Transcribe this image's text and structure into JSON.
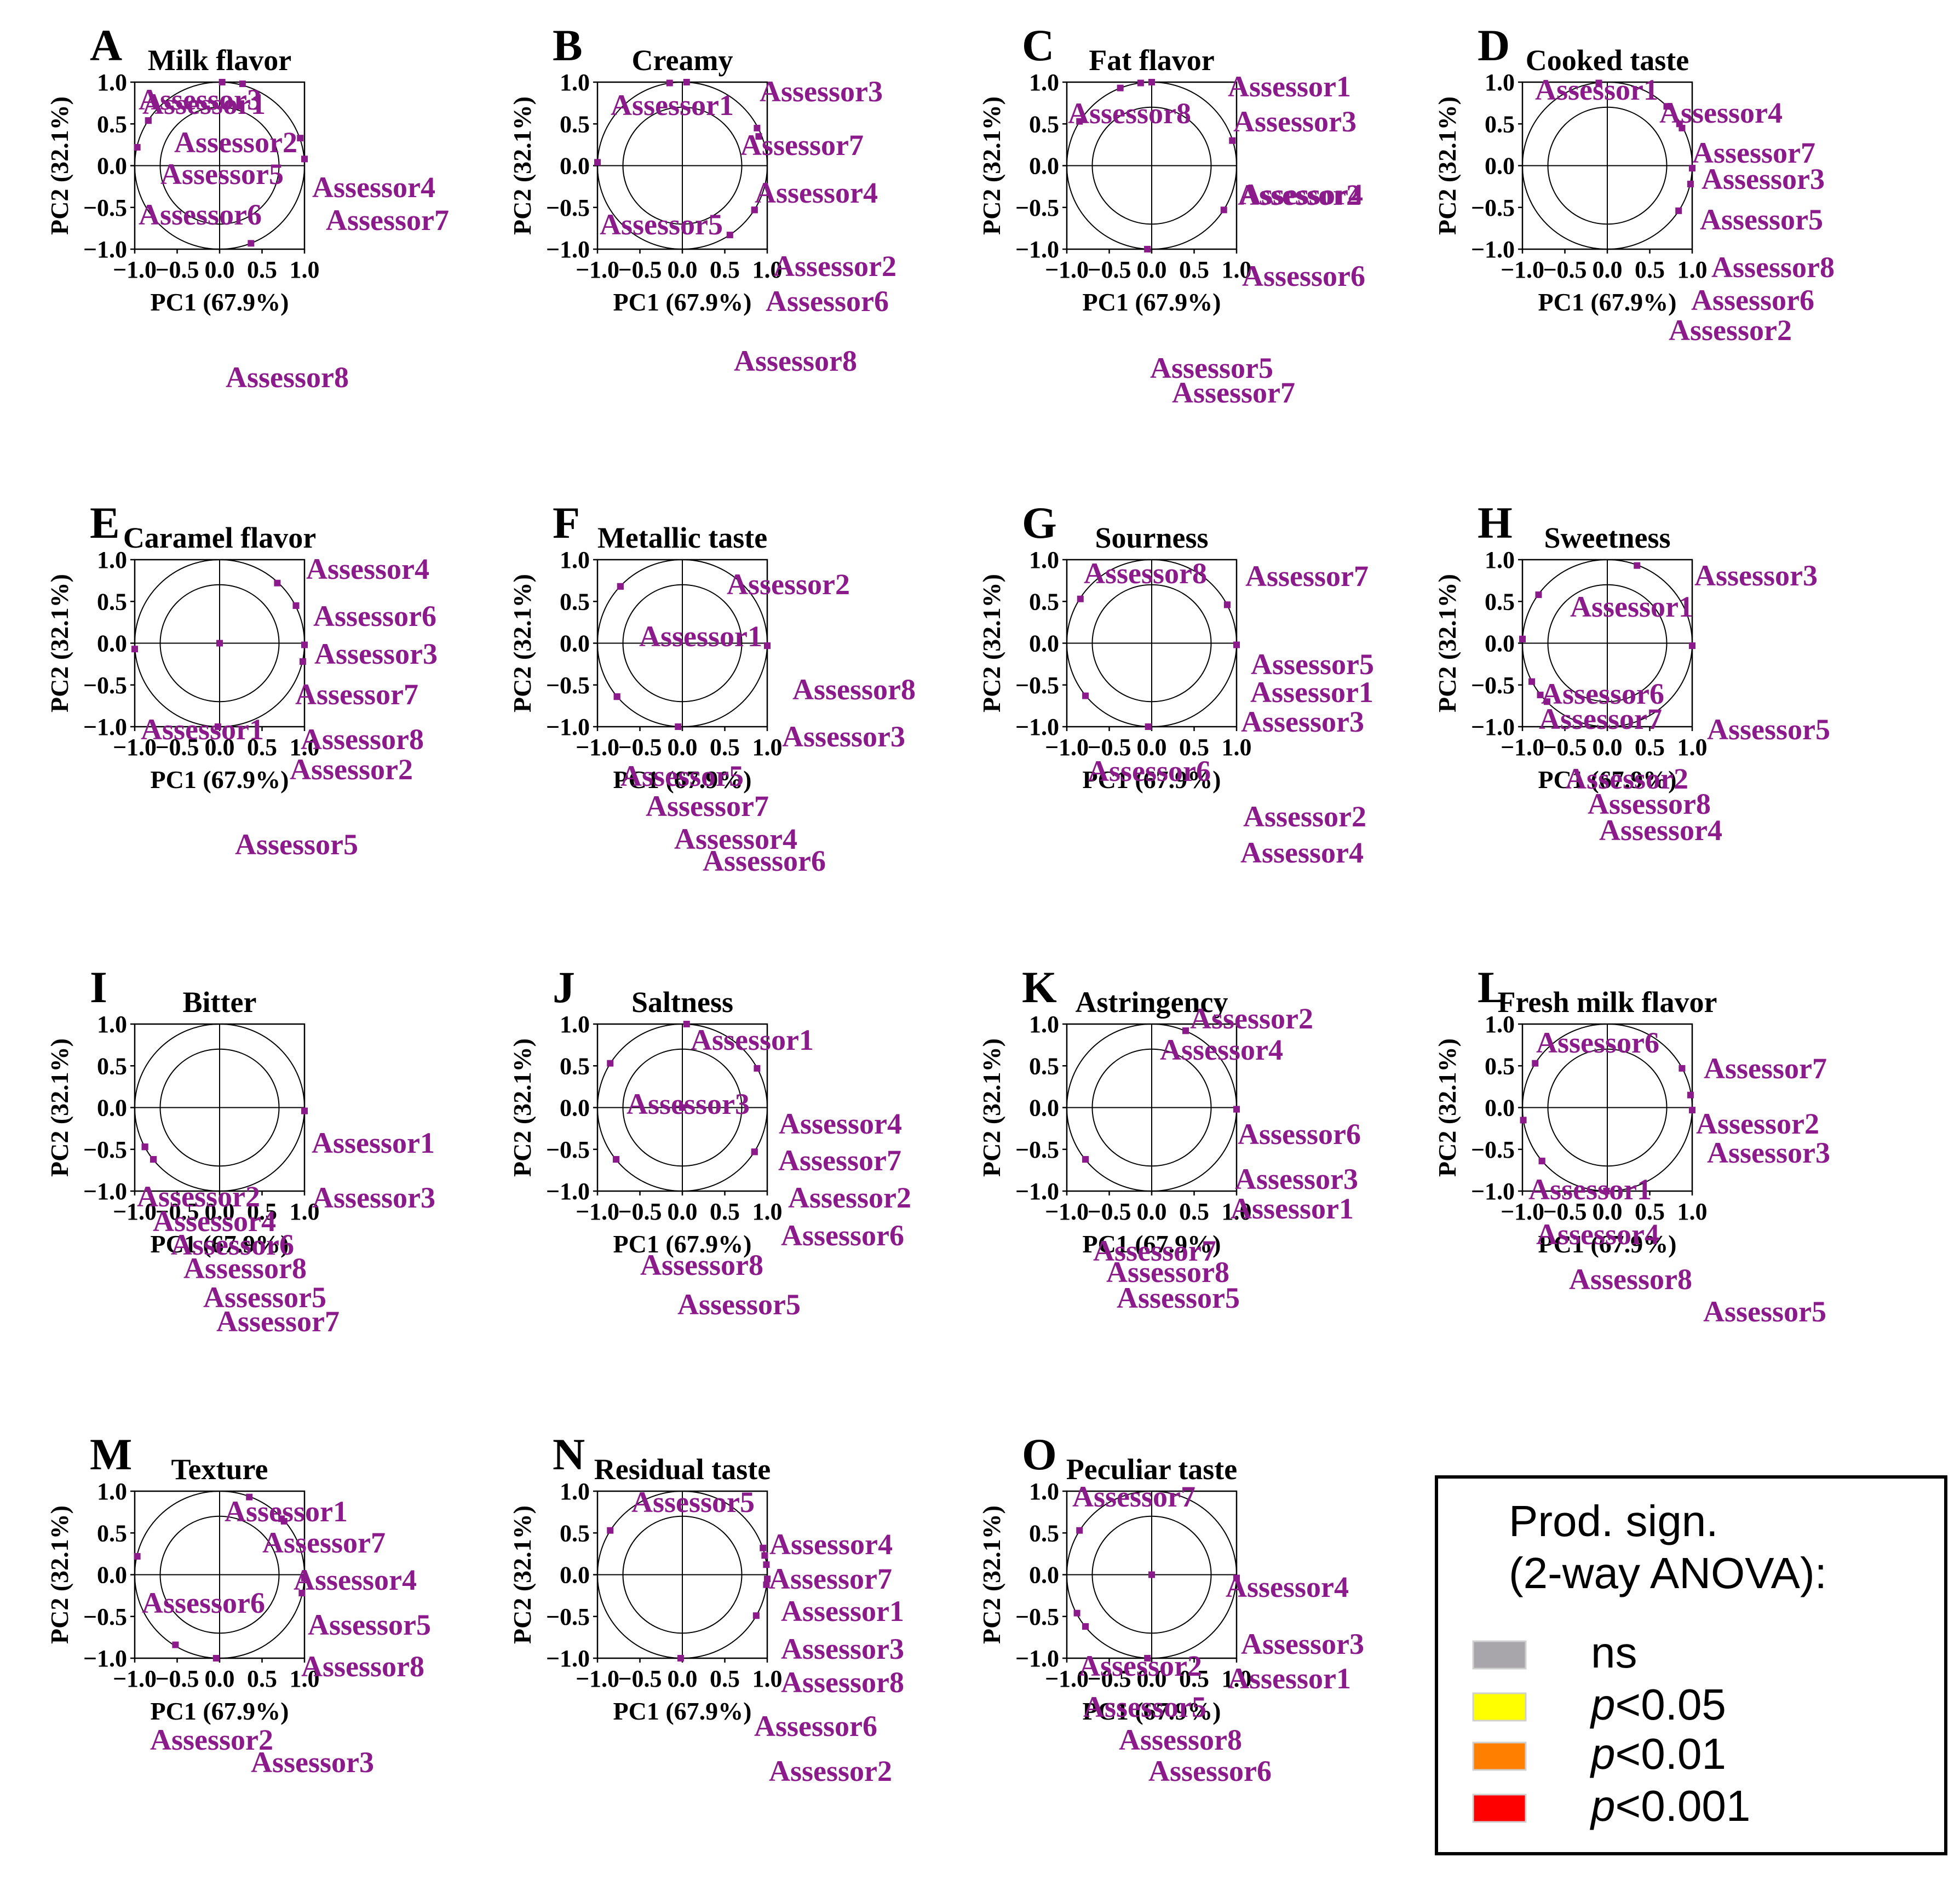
{
  "colors": {
    "point": "#8b1a8b",
    "axis": "#000000"
  },
  "legend": {
    "title_line1": "Prod. sign.",
    "title_line2": "(2-way ANOVA):",
    "items": [
      {
        "label": "ns",
        "color": "#a8a6ab"
      },
      {
        "label": "p<0.05",
        "color": "#ffff00"
      },
      {
        "label": "p<0.01",
        "color": "#ff8000"
      },
      {
        "label": "p<0.001",
        "color": "#ff0000"
      }
    ]
  },
  "chart_data": [
    {
      "type": "scatter",
      "letter": "A",
      "title": "Milk flavor",
      "xlabel": "PC1 (67.9%)",
      "ylabel": "PC2 (32.1%)",
      "xlim": [
        -1,
        1
      ],
      "ylim": [
        -1,
        1
      ],
      "xticks": [
        "−1.0",
        "−0.5",
        "0.0",
        "0.5",
        "1.0"
      ],
      "yticks": [
        "−1.0",
        "−0.5",
        "0.0",
        "0.5",
        "1.0"
      ],
      "circles": [
        1.0,
        0.7
      ],
      "points": [
        {
          "name": "Assessor1",
          "x": 0.27,
          "y": 0.98
        },
        {
          "name": "Assessor2",
          "x": -0.84,
          "y": 0.54
        },
        {
          "name": "Assessor3",
          "x": 0.03,
          "y": 1.0
        },
        {
          "name": "Assessor4",
          "x": 0.95,
          "y": 0.33
        },
        {
          "name": "Assessor5",
          "x": -0.84,
          "y": 0.54
        },
        {
          "name": "Assessor6",
          "x": -0.97,
          "y": 0.22
        },
        {
          "name": "Assessor7",
          "x": 1.0,
          "y": 0.08
        },
        {
          "name": "Assessor8",
          "x": 0.37,
          "y": -0.93
        }
      ]
    },
    {
      "type": "scatter",
      "letter": "B",
      "title": "Creamy",
      "xlabel": "PC1 (67.9%)",
      "ylabel": "PC2 (32.1%)",
      "xlim": [
        -1,
        1
      ],
      "ylim": [
        -1,
        1
      ],
      "xticks": [
        "−1.0",
        "−0.5",
        "0.0",
        "0.5",
        "1.0"
      ],
      "yticks": [
        "−1.0",
        "−0.5",
        "0.0",
        "0.5",
        "1.0"
      ],
      "circles": [
        1.0,
        0.7
      ],
      "points": [
        {
          "name": "Assessor1",
          "x": -0.15,
          "y": 0.99
        },
        {
          "name": "Assessor2",
          "x": 0.85,
          "y": -0.53
        },
        {
          "name": "Assessor3",
          "x": 0.05,
          "y": 1.0
        },
        {
          "name": "Assessor4",
          "x": 0.9,
          "y": 0.35
        },
        {
          "name": "Assessor5",
          "x": -1.0,
          "y": 0.04
        },
        {
          "name": "Assessor6",
          "x": 0.85,
          "y": -0.53
        },
        {
          "name": "Assessor7",
          "x": 0.88,
          "y": 0.45
        },
        {
          "name": "Assessor8",
          "x": 0.56,
          "y": -0.83
        }
      ]
    },
    {
      "type": "scatter",
      "letter": "C",
      "title": "Fat flavor",
      "xlabel": "PC1 (67.9%)",
      "ylabel": "PC2 (32.1%)",
      "xlim": [
        -1,
        1
      ],
      "ylim": [
        -1,
        1
      ],
      "xticks": [
        "−1.0",
        "−0.5",
        "0.0",
        "0.5",
        "1.0"
      ],
      "yticks": [
        "−1.0",
        "−0.5",
        "0.0",
        "0.5",
        "1.0"
      ],
      "circles": [
        1.0,
        0.7
      ],
      "points": [
        {
          "name": "Assessor1",
          "x": 0.0,
          "y": 1.0
        },
        {
          "name": "Assessor2",
          "x": -0.85,
          "y": 0.53
        },
        {
          "name": "Assessor3",
          "x": -0.13,
          "y": 0.99
        },
        {
          "name": "Assessor4",
          "x": 0.95,
          "y": 0.3
        },
        {
          "name": "Assessor5",
          "x": -0.05,
          "y": -1.0
        },
        {
          "name": "Assessor6",
          "x": 0.85,
          "y": -0.53
        },
        {
          "name": "Assessor7",
          "x": -0.05,
          "y": -1.0
        },
        {
          "name": "Assessor8",
          "x": -0.37,
          "y": 0.93
        }
      ]
    },
    {
      "type": "scatter",
      "letter": "D",
      "title": "Cooked taste",
      "xlabel": "PC1 (67.9%)",
      "ylabel": "PC2 (32.1%)",
      "xlim": [
        -1,
        1
      ],
      "ylim": [
        -1,
        1
      ],
      "xticks": [
        "−1.0",
        "−0.5",
        "0.0",
        "0.5",
        "1.0"
      ],
      "yticks": [
        "−1.0",
        "−0.5",
        "0.0",
        "0.5",
        "1.0"
      ],
      "circles": [
        1.0,
        0.7
      ],
      "points": [
        {
          "name": "Assessor1",
          "x": -0.1,
          "y": 0.99
        },
        {
          "name": "Assessor2",
          "x": 0.84,
          "y": -0.54
        },
        {
          "name": "Assessor3",
          "x": 0.88,
          "y": 0.45
        },
        {
          "name": "Assessor4",
          "x": 0.7,
          "y": 0.71
        },
        {
          "name": "Assessor5",
          "x": 1.0,
          "y": -0.03
        },
        {
          "name": "Assessor6",
          "x": 0.98,
          "y": -0.22
        },
        {
          "name": "Assessor7",
          "x": 0.85,
          "y": 0.5
        },
        {
          "name": "Assessor8",
          "x": 1.0,
          "y": -0.03
        }
      ]
    },
    {
      "type": "scatter",
      "letter": "E",
      "title": "Caramel flavor",
      "xlabel": "PC1 (67.9%)",
      "ylabel": "PC2 (32.1%)",
      "xlim": [
        -1,
        1
      ],
      "ylim": [
        -1,
        1
      ],
      "xticks": [
        "−1.0",
        "−0.5",
        "0.0",
        "0.5",
        "1.0"
      ],
      "yticks": [
        "−1.0",
        "−0.5",
        "0.0",
        "0.5",
        "1.0"
      ],
      "circles": [
        1.0,
        0.7
      ],
      "points": [
        {
          "name": "Assessor1",
          "x": -1.0,
          "y": -0.07
        },
        {
          "name": "Assessor2",
          "x": 0.98,
          "y": -0.22
        },
        {
          "name": "Assessor3",
          "x": 0.9,
          "y": 0.45
        },
        {
          "name": "Assessor4",
          "x": 0.68,
          "y": 0.72
        },
        {
          "name": "Assessor5",
          "x": -0.02,
          "y": -1.0
        },
        {
          "name": "Assessor6",
          "x": 0.9,
          "y": 0.45
        },
        {
          "name": "Assessor7",
          "x": 0.0,
          "y": 0.0
        },
        {
          "name": "Assessor8",
          "x": 1.0,
          "y": -0.02
        }
      ]
    },
    {
      "type": "scatter",
      "letter": "F",
      "title": "Metallic taste",
      "xlabel": "PC1 (67.9%)",
      "ylabel": "PC2 (32.1%)",
      "xlim": [
        -1,
        1
      ],
      "ylim": [
        -1,
        1
      ],
      "xticks": [
        "−1.0",
        "−0.5",
        "0.0",
        "0.5",
        "1.0"
      ],
      "yticks": [
        "−1.0",
        "−0.5",
        "0.0",
        "0.5",
        "1.0"
      ],
      "circles": [
        1.0,
        0.7
      ],
      "points": [
        {
          "name": "Assessor1",
          "x": -0.73,
          "y": 0.68
        },
        {
          "name": "Assessor2",
          "x": -0.73,
          "y": 0.68
        },
        {
          "name": "Assessor3",
          "x": 1.0,
          "y": -0.03
        },
        {
          "name": "Assessor4",
          "x": -0.77,
          "y": -0.64
        },
        {
          "name": "Assessor5",
          "x": -0.77,
          "y": -0.64
        },
        {
          "name": "Assessor6",
          "x": -0.05,
          "y": -1.0
        },
        {
          "name": "Assessor7",
          "x": -0.77,
          "y": -0.64
        },
        {
          "name": "Assessor8",
          "x": 1.0,
          "y": -0.03
        }
      ]
    },
    {
      "type": "scatter",
      "letter": "G",
      "title": "Sourness",
      "xlabel": "PC1 (67.9%)",
      "ylabel": "PC2 (32.1%)",
      "xlim": [
        -1,
        1
      ],
      "ylim": [
        -1,
        1
      ],
      "xticks": [
        "−1.0",
        "−0.5",
        "0.0",
        "0.5",
        "1.0"
      ],
      "yticks": [
        "−1.0",
        "−0.5",
        "0.0",
        "0.5",
        "1.0"
      ],
      "circles": [
        1.0,
        0.7
      ],
      "points": [
        {
          "name": "Assessor1",
          "x": 1.0,
          "y": -0.02
        },
        {
          "name": "Assessor2",
          "x": -0.04,
          "y": -1.0
        },
        {
          "name": "Assessor3",
          "x": 1.0,
          "y": -0.02
        },
        {
          "name": "Assessor4",
          "x": -0.04,
          "y": -1.0
        },
        {
          "name": "Assessor5",
          "x": 0.89,
          "y": 0.46
        },
        {
          "name": "Assessor6",
          "x": -0.78,
          "y": -0.63
        },
        {
          "name": "Assessor7",
          "x": 0.89,
          "y": 0.46
        },
        {
          "name": "Assessor8",
          "x": -0.84,
          "y": 0.53
        }
      ]
    },
    {
      "type": "scatter",
      "letter": "H",
      "title": "Sweetness",
      "xlabel": "PC1 (67.9%)",
      "ylabel": "PC2 (32.1%)",
      "xlim": [
        -1,
        1
      ],
      "ylim": [
        -1,
        1
      ],
      "xticks": [
        "−1.0",
        "−0.5",
        "0.0",
        "0.5",
        "1.0"
      ],
      "yticks": [
        "−1.0",
        "−0.5",
        "0.0",
        "0.5",
        "1.0"
      ],
      "circles": [
        1.0,
        0.7
      ],
      "points": [
        {
          "name": "Assessor1",
          "x": -0.81,
          "y": 0.58
        },
        {
          "name": "Assessor2",
          "x": -0.89,
          "y": -0.46
        },
        {
          "name": "Assessor3",
          "x": 0.35,
          "y": 0.93
        },
        {
          "name": "Assessor4",
          "x": -0.71,
          "y": -0.7
        },
        {
          "name": "Assessor5",
          "x": 1.0,
          "y": -0.03
        },
        {
          "name": "Assessor6",
          "x": -1.0,
          "y": 0.05
        },
        {
          "name": "Assessor7",
          "x": -1.0,
          "y": 0.05
        },
        {
          "name": "Assessor8",
          "x": -0.79,
          "y": -0.62
        }
      ]
    },
    {
      "type": "scatter",
      "letter": "I",
      "title": "Bitter",
      "xlabel": "PC1 (67.9%)",
      "ylabel": "PC2 (32.1%)",
      "xlim": [
        -1,
        1
      ],
      "ylim": [
        -1,
        1
      ],
      "xticks": [
        "−1.0",
        "−0.5",
        "0.0",
        "0.5",
        "1.0"
      ],
      "yticks": [
        "−1.0",
        "−0.5",
        "0.0",
        "0.5",
        "1.0"
      ],
      "circles": [
        1.0,
        0.7
      ],
      "points": [
        {
          "name": "Assessor1",
          "x": 1.0,
          "y": -0.04
        },
        {
          "name": "Assessor2",
          "x": -0.88,
          "y": -0.47
        },
        {
          "name": "Assessor3",
          "x": 1.0,
          "y": -0.04
        },
        {
          "name": "Assessor4",
          "x": -0.88,
          "y": -0.47
        },
        {
          "name": "Assessor5",
          "x": -0.78,
          "y": -0.62
        },
        {
          "name": "Assessor6",
          "x": -0.88,
          "y": -0.47
        },
        {
          "name": "Assessor7",
          "x": -0.78,
          "y": -0.62
        },
        {
          "name": "Assessor8",
          "x": -0.78,
          "y": -0.62
        }
      ]
    },
    {
      "type": "scatter",
      "letter": "J",
      "title": "Saltness",
      "xlabel": "PC1 (67.9%)",
      "ylabel": "PC2 (32.1%)",
      "xlim": [
        -1,
        1
      ],
      "ylim": [
        -1,
        1
      ],
      "xticks": [
        "−1.0",
        "−0.5",
        "0.0",
        "0.5",
        "1.0"
      ],
      "yticks": [
        "−1.0",
        "−0.5",
        "0.0",
        "0.5",
        "1.0"
      ],
      "circles": [
        1.0,
        0.7
      ],
      "points": [
        {
          "name": "Assessor1",
          "x": 0.05,
          "y": 1.0
        },
        {
          "name": "Assessor2",
          "x": 0.85,
          "y": -0.53
        },
        {
          "name": "Assessor3",
          "x": -0.85,
          "y": 0.53
        },
        {
          "name": "Assessor4",
          "x": 0.88,
          "y": 0.47
        },
        {
          "name": "Assessor5",
          "x": -0.78,
          "y": -0.62
        },
        {
          "name": "Assessor6",
          "x": 0.85,
          "y": -0.53
        },
        {
          "name": "Assessor7",
          "x": 0.0,
          "y": 0.0
        },
        {
          "name": "Assessor8",
          "x": -0.78,
          "y": -0.62
        }
      ]
    },
    {
      "type": "scatter",
      "letter": "K",
      "title": "Astringency",
      "xlabel": "PC1 (67.9%)",
      "ylabel": "PC2 (32.1%)",
      "xlim": [
        -1,
        1
      ],
      "ylim": [
        -1,
        1
      ],
      "xticks": [
        "−1.0",
        "−0.5",
        "0.0",
        "0.5",
        "1.0"
      ],
      "yticks": [
        "−1.0",
        "−0.5",
        "0.0",
        "0.5",
        "1.0"
      ],
      "circles": [
        1.0,
        0.7
      ],
      "points": [
        {
          "name": "Assessor1",
          "x": 1.0,
          "y": -0.02
        },
        {
          "name": "Assessor2",
          "x": 0.4,
          "y": 0.92
        },
        {
          "name": "Assessor3",
          "x": 1.0,
          "y": -0.02
        },
        {
          "name": "Assessor4",
          "x": 0.4,
          "y": 0.92
        },
        {
          "name": "Assessor5",
          "x": -0.78,
          "y": -0.62
        },
        {
          "name": "Assessor6",
          "x": 1.0,
          "y": -0.02
        },
        {
          "name": "Assessor7",
          "x": -0.78,
          "y": -0.62
        },
        {
          "name": "Assessor8",
          "x": -0.78,
          "y": -0.62
        }
      ]
    },
    {
      "type": "scatter",
      "letter": "L",
      "title": "Fresh milk flavor",
      "xlabel": "PC1 (67.9%)",
      "ylabel": "PC2 (32.1%)",
      "xlim": [
        -1,
        1
      ],
      "ylim": [
        -1,
        1
      ],
      "xticks": [
        "−1.0",
        "−0.5",
        "0.0",
        "0.5",
        "1.0"
      ],
      "yticks": [
        "−1.0",
        "−0.5",
        "0.0",
        "0.5",
        "1.0"
      ],
      "circles": [
        1.0,
        0.7
      ],
      "points": [
        {
          "name": "Assessor1",
          "x": -0.99,
          "y": -0.15
        },
        {
          "name": "Assessor2",
          "x": 0.98,
          "y": 0.15
        },
        {
          "name": "Assessor3",
          "x": 1.0,
          "y": -0.03
        },
        {
          "name": "Assessor4",
          "x": -0.77,
          "y": -0.64
        },
        {
          "name": "Assessor5",
          "x": -0.01,
          "y": -1.0
        },
        {
          "name": "Assessor6",
          "x": -0.85,
          "y": 0.53
        },
        {
          "name": "Assessor7",
          "x": 0.88,
          "y": 0.47
        },
        {
          "name": "Assessor8",
          "x": -0.77,
          "y": -0.64
        }
      ]
    },
    {
      "type": "scatter",
      "letter": "M",
      "title": "Texture",
      "xlabel": "PC1 (67.9%)",
      "ylabel": "PC2 (32.1%)",
      "xlim": [
        -1,
        1
      ],
      "ylim": [
        -1,
        1
      ],
      "xticks": [
        "−1.0",
        "−0.5",
        "0.0",
        "0.5",
        "1.0"
      ],
      "yticks": [
        "−1.0",
        "−0.5",
        "0.0",
        "0.5",
        "1.0"
      ],
      "circles": [
        1.0,
        0.7
      ],
      "points": [
        {
          "name": "Assessor1",
          "x": 0.35,
          "y": 0.93
        },
        {
          "name": "Assessor2",
          "x": -0.52,
          "y": -0.84
        },
        {
          "name": "Assessor3",
          "x": -0.04,
          "y": -1.0
        },
        {
          "name": "Assessor4",
          "x": 0.76,
          "y": 0.64
        },
        {
          "name": "Assessor5",
          "x": 0.97,
          "y": -0.22
        },
        {
          "name": "Assessor6",
          "x": -0.97,
          "y": 0.22
        },
        {
          "name": "Assessor7",
          "x": 0.73,
          "y": 0.67
        },
        {
          "name": "Assessor8",
          "x": 1.0,
          "y": -0.04
        }
      ]
    },
    {
      "type": "scatter",
      "letter": "N",
      "title": "Residual taste",
      "xlabel": "PC1 (67.9%)",
      "ylabel": "PC2 (32.1%)",
      "xlim": [
        -1,
        1
      ],
      "ylim": [
        -1,
        1
      ],
      "xticks": [
        "−1.0",
        "−0.5",
        "0.0",
        "0.5",
        "1.0"
      ],
      "yticks": [
        "−1.0",
        "−0.5",
        "0.0",
        "0.5",
        "1.0"
      ],
      "circles": [
        1.0,
        0.7
      ],
      "points": [
        {
          "name": "Assessor1",
          "x": 0.99,
          "y": 0.12
        },
        {
          "name": "Assessor2",
          "x": -0.02,
          "y": -1.0
        },
        {
          "name": "Assessor3",
          "x": 1.0,
          "y": -0.05
        },
        {
          "name": "Assessor4",
          "x": 0.95,
          "y": 0.32
        },
        {
          "name": "Assessor5",
          "x": -0.85,
          "y": 0.53
        },
        {
          "name": "Assessor6",
          "x": 0.87,
          "y": -0.49
        },
        {
          "name": "Assessor7",
          "x": 0.97,
          "y": 0.23
        },
        {
          "name": "Assessor8",
          "x": 0.99,
          "y": -0.12
        }
      ]
    },
    {
      "type": "scatter",
      "letter": "O",
      "title": "Peculiar taste",
      "xlabel": "PC1 (67.9%)",
      "ylabel": "PC2 (32.1%)",
      "xlim": [
        -1,
        1
      ],
      "ylim": [
        -1,
        1
      ],
      "xticks": [
        "−1.0",
        "−0.5",
        "0.0",
        "0.5",
        "1.0"
      ],
      "yticks": [
        "−1.0",
        "−0.5",
        "0.0",
        "0.5",
        "1.0"
      ],
      "circles": [
        1.0,
        0.7
      ],
      "points": [
        {
          "name": "Assessor1",
          "x": 1.0,
          "y": -0.04
        },
        {
          "name": "Assessor2",
          "x": -0.88,
          "y": -0.46
        },
        {
          "name": "Assessor3",
          "x": 1.0,
          "y": -0.04
        },
        {
          "name": "Assessor4",
          "x": 0.0,
          "y": 0.0
        },
        {
          "name": "Assessor5",
          "x": -0.78,
          "y": -0.62
        },
        {
          "name": "Assessor6",
          "x": -0.05,
          "y": -1.0
        },
        {
          "name": "Assessor7",
          "x": -0.85,
          "y": 0.53
        },
        {
          "name": "Assessor8",
          "x": -0.78,
          "y": -0.62
        }
      ]
    }
  ]
}
